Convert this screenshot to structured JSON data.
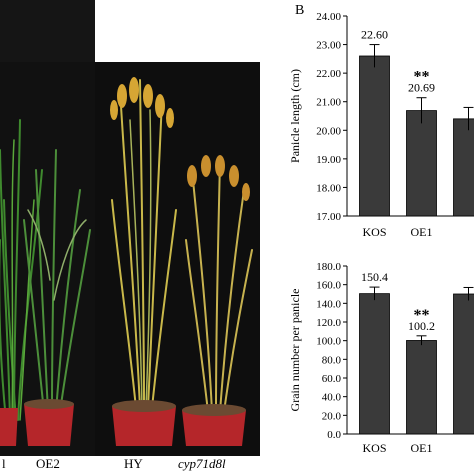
{
  "panel_b_letter": "B",
  "photo": {
    "labels": [
      "l",
      "OE2",
      "HY",
      "cyp71d8l"
    ]
  },
  "chart_data": [
    {
      "type": "bar",
      "categories": [
        "KOS",
        "OE1",
        ""
      ],
      "values": [
        22.6,
        20.69,
        20.4
      ],
      "errors": [
        0.4,
        0.45,
        0.4
      ],
      "value_labels": [
        "22.60",
        "20.69",
        ""
      ],
      "significance": [
        "",
        "**",
        ""
      ],
      "ylabel": "Panicle length (cm)",
      "ylim": [
        17.0,
        24.0
      ],
      "yticks": [
        "17.00",
        "18.00",
        "19.00",
        "20.00",
        "21.00",
        "22.00",
        "23.00",
        "24.00"
      ],
      "ytick_values": [
        17,
        18,
        19,
        20,
        21,
        22,
        23,
        24
      ],
      "bar_color": "#3a3a3a"
    },
    {
      "type": "bar",
      "categories": [
        "KOS",
        "OE1",
        ""
      ],
      "values": [
        150.4,
        100.2,
        150.0
      ],
      "errors": [
        7.0,
        5.0,
        7.0
      ],
      "value_labels": [
        "150.4",
        "100.2",
        ""
      ],
      "significance": [
        "",
        "**",
        ""
      ],
      "ylabel": "Grain number per panicle",
      "ylim": [
        0.0,
        180.0
      ],
      "yticks": [
        "0.0",
        "20.0",
        "40.0",
        "60.0",
        "80.0",
        "100.0",
        "120.0",
        "140.0",
        "160.0",
        "180.0"
      ],
      "ytick_values": [
        0,
        20,
        40,
        60,
        80,
        100,
        120,
        140,
        160,
        180
      ],
      "bar_color": "#3a3a3a"
    }
  ]
}
